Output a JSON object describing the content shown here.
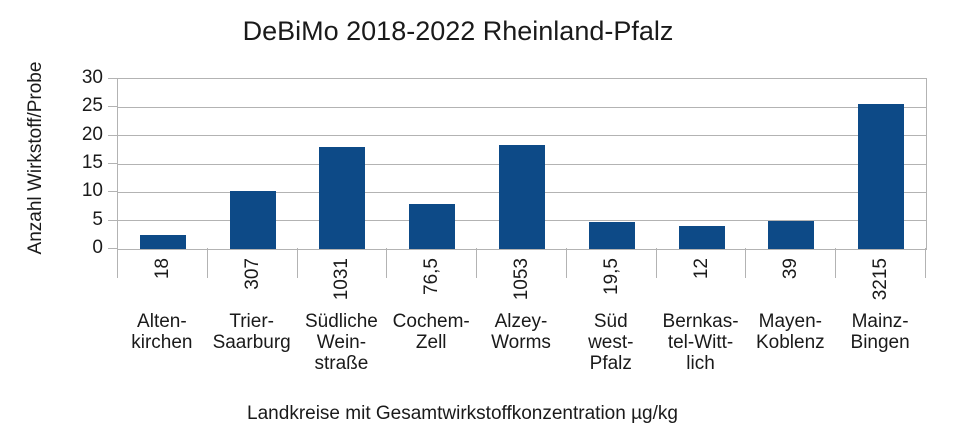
{
  "title": "DeBiMo 2018-2022 Rheinland-Pfalz",
  "colors": {
    "bar": "#0d4a87",
    "grid": "#b3b3b3",
    "text": "#1a1a1a",
    "background": "#ffffff"
  },
  "chart_data": {
    "type": "bar",
    "title": "DeBiMo 2018-2022 Rheinland-Pfalz",
    "xlabel": "Landkreise mit Gesamtwirkstoffkonzentration µg/kg",
    "ylabel": "Anzahl Wirkstoff/Probe",
    "ylim": [
      0,
      30
    ],
    "y_tick_step": 5,
    "y_tick_labels": [
      "0",
      "5",
      "10",
      "15",
      "20",
      "25",
      "30"
    ],
    "grid": "horizontal",
    "legend": "none",
    "categories": [
      "Alten-\nkirchen",
      "Trier-\nSaarburg",
      "Südliche\nWein-\nstraße",
      "Cochem-\nZell",
      "Alzey-\nWorms",
      "Süd\nwest-\nPfalz",
      "Bernkas-\ntel-Witt-\nlich",
      "Mayen-\nKoblenz",
      "Mainz-\nBingen"
    ],
    "values": [
      2.5,
      10.2,
      18.0,
      8.0,
      18.3,
      4.7,
      4.0,
      5.0,
      25.6
    ],
    "bar_value_labels": [
      "18",
      "307",
      "1031",
      "76,5",
      "1053",
      "19,5",
      "12",
      "39",
      "3215"
    ]
  }
}
